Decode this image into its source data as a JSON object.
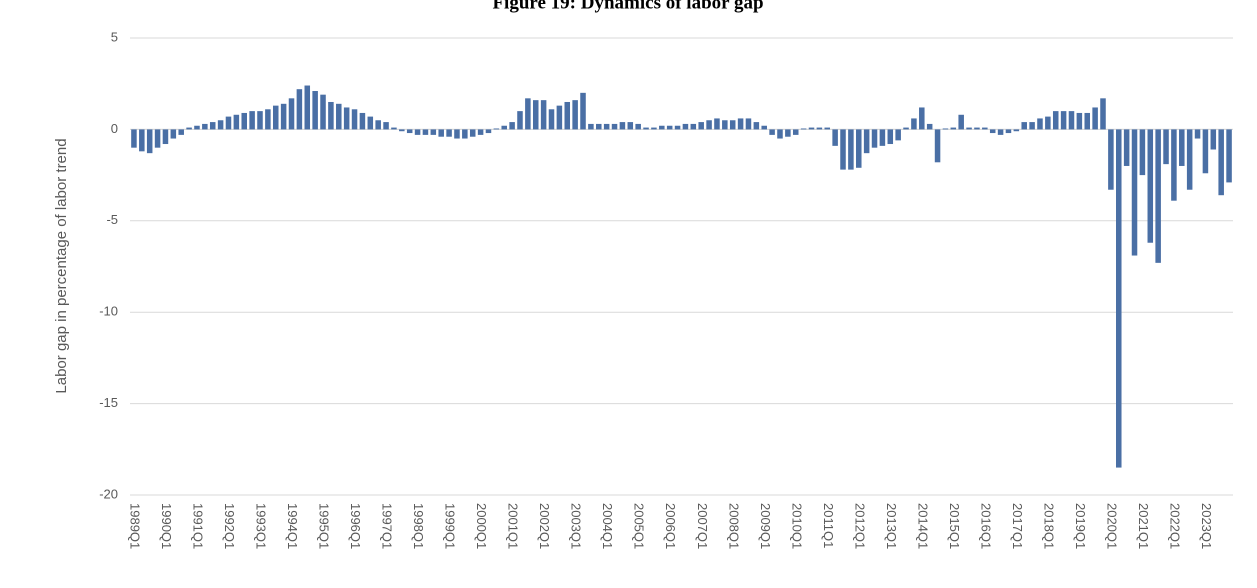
{
  "chart_data": {
    "type": "bar",
    "title": "Figure 19: Dynamics of labor gap",
    "y_label": "Labor gap in percentage of labor trend",
    "color": "#4a6fa5",
    "grid": true,
    "ylim": [
      -20,
      5
    ],
    "yticks": [
      -20,
      -15,
      -10,
      -5,
      0,
      5
    ],
    "categories": [
      "1989Q1",
      null,
      null,
      null,
      "1990Q1",
      null,
      null,
      null,
      "1991Q1",
      null,
      null,
      null,
      "1992Q1",
      null,
      null,
      null,
      "1993Q1",
      null,
      null,
      null,
      "1994Q1",
      null,
      null,
      null,
      "1995Q1",
      null,
      null,
      null,
      "1996Q1",
      null,
      null,
      null,
      "1997Q1",
      null,
      null,
      null,
      "1998Q1",
      null,
      null,
      null,
      "1999Q1",
      null,
      null,
      null,
      "2000Q1",
      null,
      null,
      null,
      "2001Q1",
      null,
      null,
      null,
      "2002Q1",
      null,
      null,
      null,
      "2003Q1",
      null,
      null,
      null,
      "2004Q1",
      null,
      null,
      null,
      "2005Q1",
      null,
      null,
      null,
      "2006Q1",
      null,
      null,
      null,
      "2007Q1",
      null,
      null,
      null,
      "2008Q1",
      null,
      null,
      null,
      "2009Q1",
      null,
      null,
      null,
      "2010Q1",
      null,
      null,
      null,
      "2011Q1",
      null,
      null,
      null,
      "2012Q1",
      null,
      null,
      null,
      "2013Q1",
      null,
      null,
      null,
      "2014Q1",
      null,
      null,
      null,
      "2015Q1",
      null,
      null,
      null,
      "2016Q1",
      null,
      null,
      null,
      "2017Q1",
      null,
      null,
      null,
      "2018Q1",
      null,
      null,
      null,
      "2019Q1",
      null,
      null,
      null,
      "2020Q1",
      null,
      null,
      null,
      "2021Q1",
      null,
      null,
      null,
      "2022Q1",
      null,
      null,
      null,
      "2023Q1",
      null,
      null,
      null
    ],
    "values": [
      -1.0,
      -1.2,
      -1.3,
      -1.0,
      -0.8,
      -0.5,
      -0.3,
      0.1,
      0.2,
      0.3,
      0.4,
      0.5,
      0.7,
      0.8,
      0.9,
      1.0,
      1.0,
      1.1,
      1.3,
      1.4,
      1.7,
      2.2,
      2.4,
      2.1,
      1.9,
      1.5,
      1.4,
      1.2,
      1.1,
      0.9,
      0.7,
      0.5,
      0.4,
      0.1,
      -0.1,
      -0.2,
      -0.3,
      -0.3,
      -0.3,
      -0.4,
      -0.4,
      -0.5,
      -0.5,
      -0.4,
      -0.3,
      -0.2,
      0.05,
      0.2,
      0.4,
      1.0,
      1.7,
      1.6,
      1.6,
      1.1,
      1.3,
      1.5,
      1.6,
      2.0,
      0.3,
      0.3,
      0.3,
      0.3,
      0.4,
      0.4,
      0.3,
      0.1,
      0.1,
      0.2,
      0.2,
      0.2,
      0.3,
      0.3,
      0.4,
      0.5,
      0.6,
      0.5,
      0.5,
      0.6,
      0.6,
      0.4,
      0.2,
      -0.3,
      -0.5,
      -0.4,
      -0.3,
      0.05,
      0.1,
      0.1,
      0.1,
      -0.9,
      -2.2,
      -2.2,
      -2.1,
      -1.3,
      -1.0,
      -0.9,
      -0.8,
      -0.6,
      0.1,
      0.6,
      1.2,
      0.3,
      -1.8,
      0.05,
      0.1,
      0.8,
      0.1,
      0.1,
      0.1,
      -0.2,
      -0.3,
      -0.2,
      -0.1,
      0.4,
      0.4,
      0.6,
      0.7,
      1.0,
      1.0,
      1.0,
      0.9,
      0.9,
      1.2,
      1.7,
      -3.3,
      -18.5,
      -2.0,
      -6.9,
      -2.5,
      -6.2,
      -7.3,
      -1.9,
      -3.9,
      -2.0,
      -3.3,
      -0.5,
      -2.4,
      -1.1,
      -3.6,
      -2.9
    ]
  }
}
